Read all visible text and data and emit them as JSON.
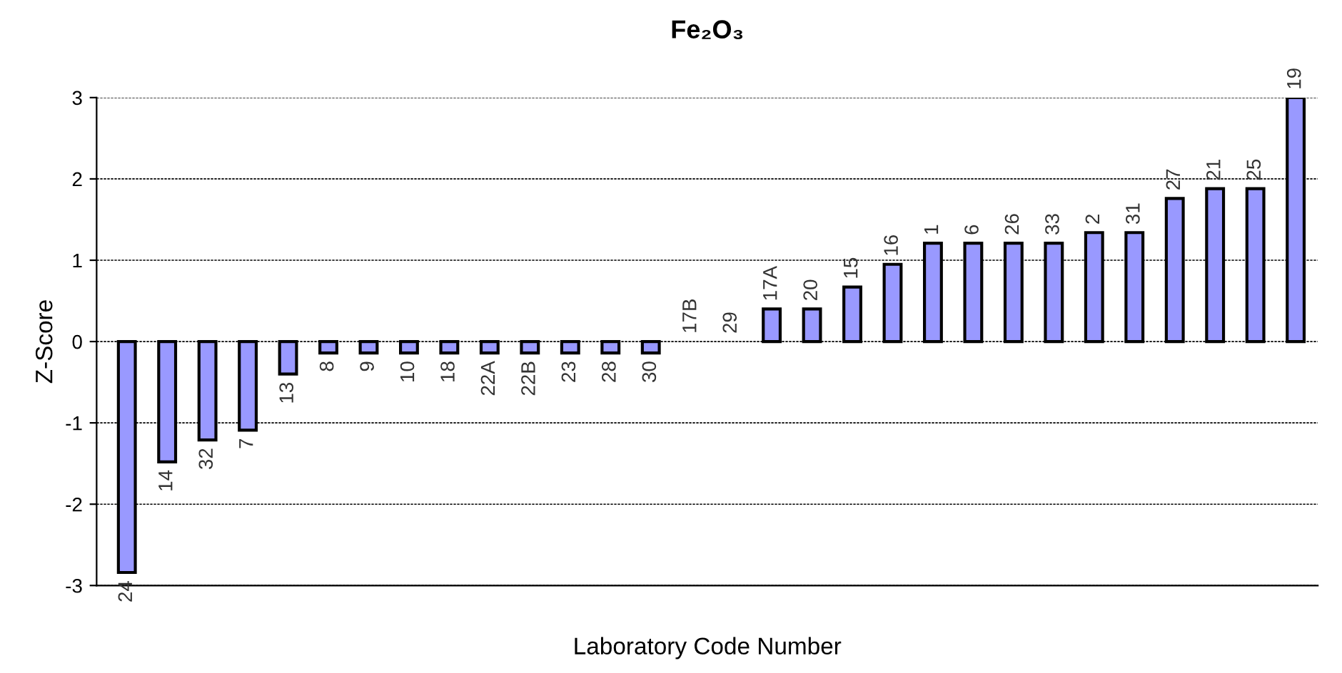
{
  "chart_data": {
    "type": "bar",
    "title": "Fe₂O₃",
    "xlabel": "Laboratory Code Number",
    "ylabel": "Z-Score",
    "categories": [
      "24",
      "14",
      "32",
      "7",
      "13",
      "8",
      "9",
      "10",
      "18",
      "22A",
      "22B",
      "23",
      "28",
      "30",
      "17B",
      "29",
      "17A",
      "20",
      "15",
      "16",
      "1",
      "6",
      "26",
      "33",
      "2",
      "31",
      "27",
      "21",
      "25",
      "19"
    ],
    "values": [
      -2.84,
      -1.48,
      -1.21,
      -1.09,
      -0.4,
      -0.14,
      -0.14,
      -0.14,
      -0.14,
      -0.14,
      -0.14,
      -0.14,
      -0.14,
      -0.14,
      0,
      0,
      0.4,
      0.4,
      0.67,
      0.95,
      1.21,
      1.21,
      1.21,
      1.21,
      1.34,
      1.34,
      1.76,
      1.88,
      1.88,
      3
    ],
    "color": "#9999ff",
    "ylim": [
      -3,
      3
    ],
    "yticks": [
      -3,
      -2,
      -1,
      0,
      1,
      2,
      3
    ],
    "grid": "y"
  }
}
